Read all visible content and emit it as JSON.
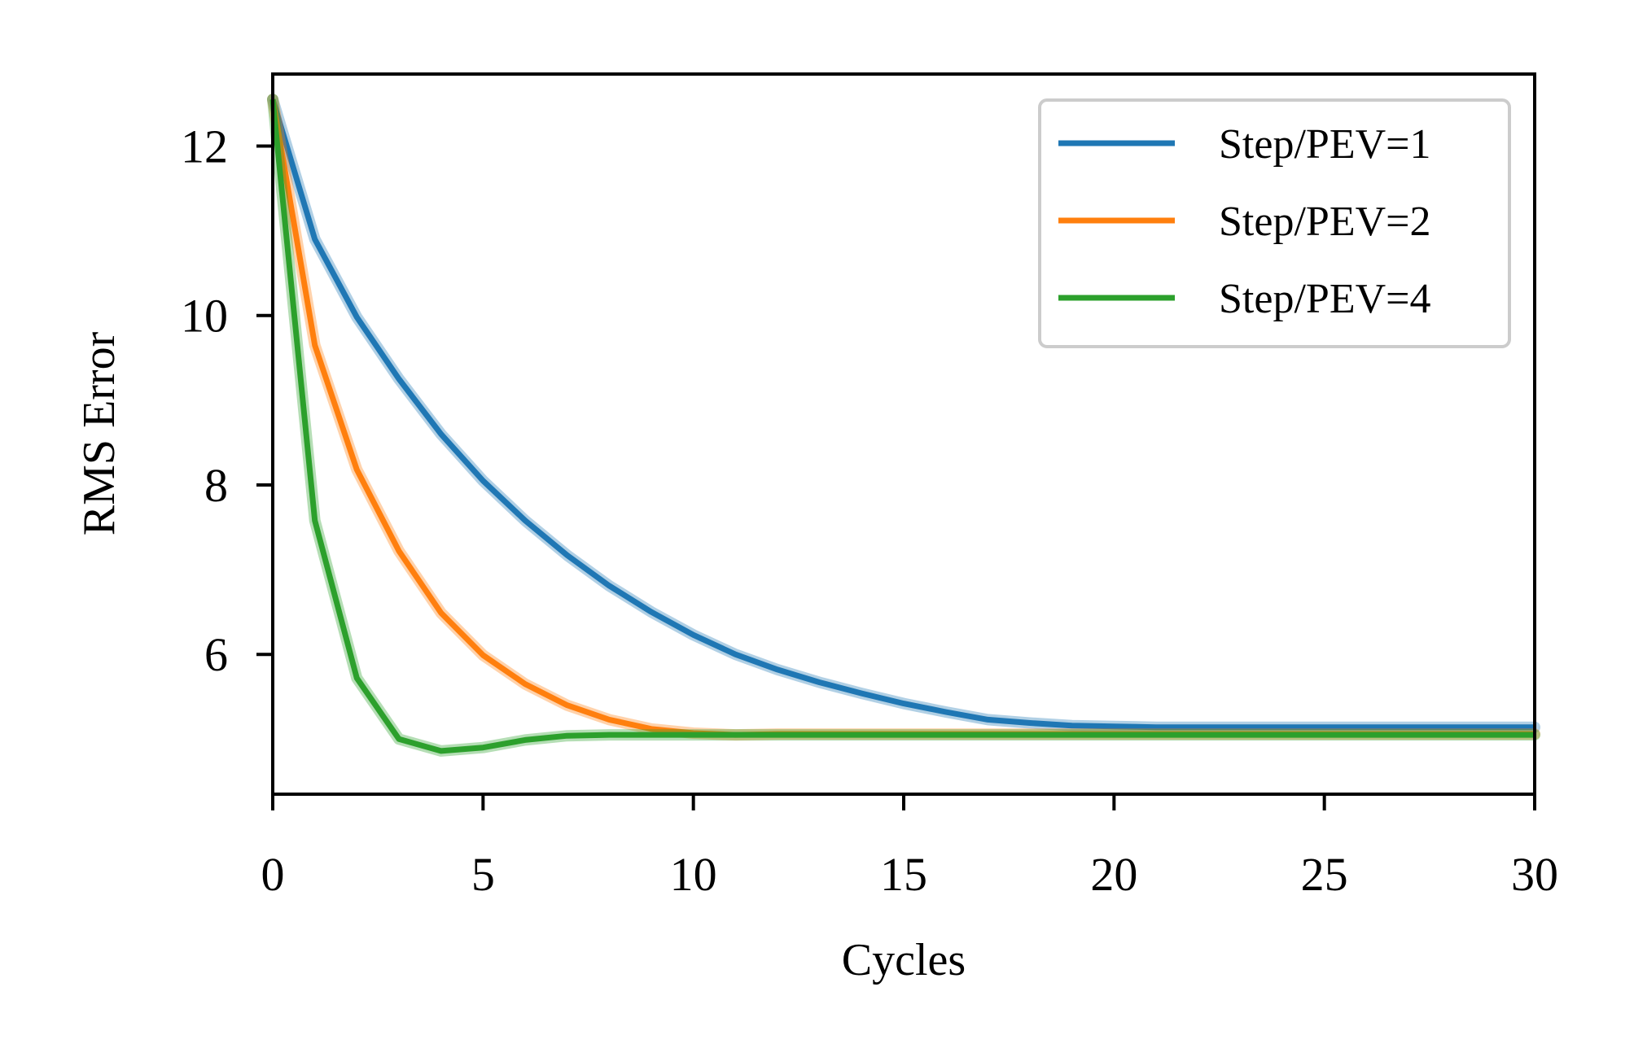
{
  "chart_data": {
    "type": "line",
    "title": "",
    "xlabel": "Cycles",
    "ylabel": "RMS Error",
    "xlim": [
      0,
      30
    ],
    "ylim": [
      4.35,
      12.85
    ],
    "xticks": [
      0,
      5,
      10,
      15,
      20,
      25,
      30
    ],
    "xtick_labels": [
      "0",
      "5",
      "10",
      "15",
      "20",
      "25",
      "30"
    ],
    "yticks": [
      6,
      8,
      10,
      12
    ],
    "ytick_labels": [
      "6",
      "8",
      "10",
      "12"
    ],
    "grid": false,
    "legend_position": "top-right",
    "series": [
      {
        "name": "Step/PEV=1",
        "color": "#1f77b4",
        "x": [
          0,
          1,
          2,
          3,
          4,
          5,
          6,
          7,
          8,
          9,
          10,
          11,
          12,
          13,
          14,
          15,
          16,
          17,
          18,
          19,
          20,
          21,
          22,
          23,
          24,
          25,
          26,
          27,
          28,
          29,
          30
        ],
        "y": [
          12.55,
          10.9,
          9.98,
          9.25,
          8.6,
          8.05,
          7.58,
          7.17,
          6.81,
          6.5,
          6.23,
          6.0,
          5.82,
          5.67,
          5.54,
          5.42,
          5.32,
          5.23,
          5.19,
          5.16,
          5.15,
          5.14,
          5.14,
          5.14,
          5.14,
          5.14,
          5.14,
          5.14,
          5.14,
          5.14,
          5.14
        ]
      },
      {
        "name": "Step/PEV=2",
        "color": "#ff7f0e",
        "x": [
          0,
          1,
          2,
          3,
          4,
          5,
          6,
          7,
          8,
          9,
          10,
          11,
          12,
          13,
          14,
          15,
          16,
          17,
          18,
          19,
          20,
          21,
          22,
          23,
          24,
          25,
          26,
          27,
          28,
          29,
          30
        ],
        "y": [
          12.55,
          9.65,
          8.18,
          7.22,
          6.49,
          5.99,
          5.65,
          5.4,
          5.23,
          5.12,
          5.07,
          5.05,
          5.06,
          5.06,
          5.06,
          5.06,
          5.06,
          5.06,
          5.06,
          5.06,
          5.06,
          5.06,
          5.06,
          5.06,
          5.06,
          5.06,
          5.06,
          5.06,
          5.06,
          5.06,
          5.06
        ]
      },
      {
        "name": "Step/PEV=4",
        "color": "#2ca02c",
        "x": [
          0,
          1,
          2,
          3,
          4,
          5,
          6,
          7,
          8,
          9,
          10,
          11,
          12,
          13,
          14,
          15,
          16,
          17,
          18,
          19,
          20,
          21,
          22,
          23,
          24,
          25,
          26,
          27,
          28,
          29,
          30
        ],
        "y": [
          12.55,
          7.58,
          5.72,
          5.0,
          4.86,
          4.9,
          4.99,
          5.04,
          5.05,
          5.05,
          5.05,
          5.05,
          5.05,
          5.05,
          5.05,
          5.05,
          5.05,
          5.05,
          5.05,
          5.05,
          5.05,
          5.05,
          5.05,
          5.05,
          5.05,
          5.05,
          5.05,
          5.05,
          5.05,
          5.05,
          5.05
        ]
      }
    ]
  }
}
